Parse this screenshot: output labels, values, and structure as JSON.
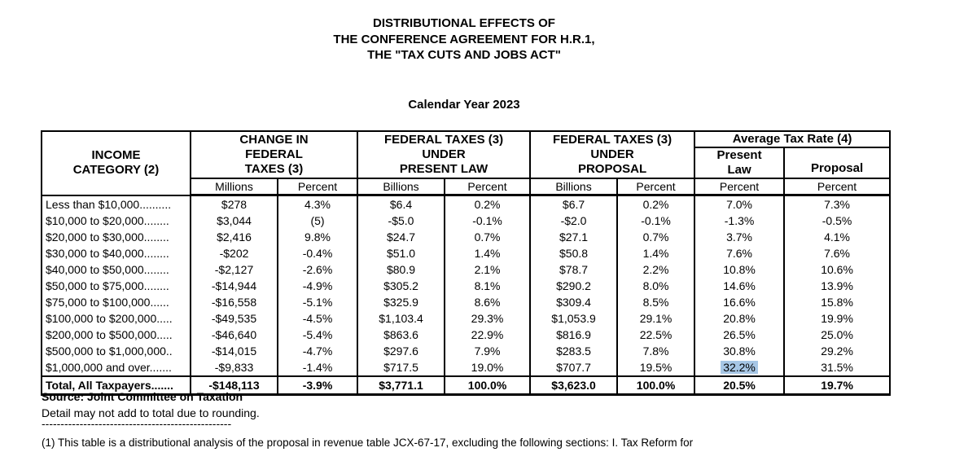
{
  "document": {
    "title_lines": "DISTRIBUTIONAL EFFECTS OF\nTHE CONFERENCE AGREEMENT FOR H.R.1,\nTHE \"TAX CUTS AND JOBS ACT\"",
    "subtitle": "Calendar Year 2023",
    "source_line": "Source:  Joint Committee on Taxation",
    "rounding_note": "Detail may not add to total due to rounding.",
    "separator_dashes": "--------------------------------------------------",
    "footnote_1": "(1) This table is a distributional analysis of the proposal in revenue table JCX-67-17, excluding the following sections: I. Tax Reform for"
  },
  "table": {
    "income_header": "INCOME\nCATEGORY (2)",
    "groups": [
      {
        "label": "CHANGE IN\nFEDERAL\nTAXES (3)",
        "units": [
          "Millions",
          "Percent"
        ]
      },
      {
        "label": "FEDERAL TAXES (3)\nUNDER\nPRESENT LAW",
        "units": [
          "Billions",
          "Percent"
        ]
      },
      {
        "label": "FEDERAL TAXES (3)\nUNDER\nPROPOSAL",
        "units": [
          "Billions",
          "Percent"
        ]
      }
    ],
    "avg_group": {
      "label": "Average Tax Rate (4)",
      "subcols": [
        "Present\nLaw",
        "Proposal"
      ],
      "units": [
        "Percent",
        "Percent"
      ]
    },
    "rows": [
      {
        "category": "Less than $10,000..........",
        "cells": [
          "$278",
          "4.3%",
          "$6.4",
          "0.2%",
          "$6.7",
          "0.2%",
          "7.0%",
          "7.3%"
        ]
      },
      {
        "category": "$10,000 to $20,000........",
        "cells": [
          "$3,044",
          "(5)",
          "-$5.0",
          "-0.1%",
          "-$2.0",
          "-0.1%",
          "-1.3%",
          "-0.5%"
        ]
      },
      {
        "category": "$20,000 to $30,000........",
        "cells": [
          "$2,416",
          "9.8%",
          "$24.7",
          "0.7%",
          "$27.1",
          "0.7%",
          "3.7%",
          "4.1%"
        ]
      },
      {
        "category": "$30,000 to $40,000........",
        "cells": [
          "-$202",
          "-0.4%",
          "$51.0",
          "1.4%",
          "$50.8",
          "1.4%",
          "7.6%",
          "7.6%"
        ]
      },
      {
        "category": "$40,000 to $50,000........",
        "cells": [
          "-$2,127",
          "-2.6%",
          "$80.9",
          "2.1%",
          "$78.7",
          "2.2%",
          "10.8%",
          "10.6%"
        ]
      },
      {
        "category": "$50,000 to $75,000........",
        "cells": [
          "-$14,944",
          "-4.9%",
          "$305.2",
          "8.1%",
          "$290.2",
          "8.0%",
          "14.6%",
          "13.9%"
        ]
      },
      {
        "category": "$75,000 to $100,000......",
        "cells": [
          "-$16,558",
          "-5.1%",
          "$325.9",
          "8.6%",
          "$309.4",
          "8.5%",
          "16.6%",
          "15.8%"
        ]
      },
      {
        "category": "$100,000 to $200,000.....",
        "cells": [
          "-$49,535",
          "-4.5%",
          "$1,103.4",
          "29.3%",
          "$1,053.9",
          "29.1%",
          "20.8%",
          "19.9%"
        ]
      },
      {
        "category": "$200,000 to $500,000.....",
        "cells": [
          "-$46,640",
          "-5.4%",
          "$863.6",
          "22.9%",
          "$816.9",
          "22.5%",
          "26.5%",
          "25.0%"
        ]
      },
      {
        "category": "$500,000 to $1,000,000..",
        "cells": [
          "-$14,015",
          "-4.7%",
          "$297.6",
          "7.9%",
          "$283.5",
          "7.8%",
          "30.8%",
          "29.2%"
        ]
      },
      {
        "category": "$1,000,000 and over.......",
        "cells": [
          "-$9,833",
          "-1.4%",
          "$717.5",
          "19.0%",
          "$707.7",
          "19.5%",
          "32.2%",
          "31.5%"
        ]
      }
    ],
    "total_row": {
      "category": "Total, All Taxpayers.......",
      "cells": [
        "-$148,113",
        "-3.9%",
        "$3,771.1",
        "100.0%",
        "$3,623.0",
        "100.0%",
        "20.5%",
        "19.7%"
      ]
    },
    "highlight": {
      "row_index": 10,
      "cell_index": 6,
      "color": "#a6c6e5"
    }
  }
}
